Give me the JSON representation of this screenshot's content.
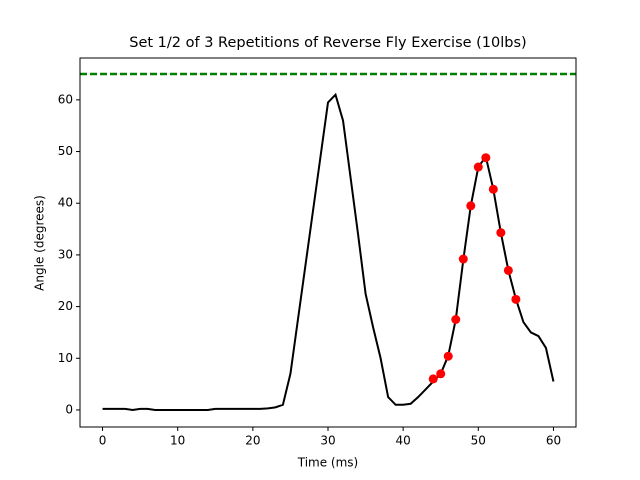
{
  "chart_data": {
    "type": "line",
    "title": "Set 1/2 of 3 Repetitions of Reverse Fly Exercise (10lbs)",
    "x_label": "Time (ms)",
    "y_label": "Angle (degrees)",
    "line": {
      "color": "#000000",
      "x": [
        0,
        1,
        2,
        3,
        4,
        5,
        6,
        7,
        8,
        9,
        10,
        11,
        12,
        13,
        14,
        15,
        16,
        17,
        18,
        19,
        20,
        21,
        22,
        23,
        24,
        25,
        26,
        27,
        28,
        29,
        30,
        31,
        32,
        33,
        34,
        35,
        36,
        37,
        38,
        39,
        40,
        41,
        42,
        43,
        44,
        45,
        46,
        47,
        48,
        49,
        50,
        51,
        52,
        53,
        54,
        55,
        56,
        57,
        58,
        59,
        60
      ],
      "values": [
        0.2,
        0.2,
        0.2,
        0.2,
        0,
        0.2,
        0.2,
        0,
        0,
        0,
        0,
        0,
        0,
        0,
        0,
        0.2,
        0.2,
        0.2,
        0.2,
        0.2,
        0.2,
        0.2,
        0.3,
        0.5,
        1,
        7,
        17.5,
        28,
        38.5,
        49,
        59.5,
        61,
        56,
        45,
        34,
        22.5,
        16,
        10,
        2.5,
        1,
        1,
        1.2,
        2.5,
        4,
        5.5,
        7,
        10.5,
        17.5,
        29,
        39.5,
        47,
        49,
        42.7,
        34.3,
        27,
        21.5,
        17,
        15,
        14.3,
        12,
        5.5
      ]
    },
    "points": {
      "color": "#ff0000",
      "x": [
        44,
        45,
        46,
        47,
        48,
        49,
        50,
        51,
        52,
        53,
        54,
        55
      ],
      "values": [
        6,
        7,
        10.4,
        17.5,
        29.2,
        39.5,
        47,
        48.8,
        42.7,
        34.3,
        27,
        21.4
      ]
    },
    "threshold": {
      "value": 65,
      "color": "#008000",
      "style": "dashed"
    },
    "xlim": [
      -3,
      63
    ],
    "ylim": [
      -3.3,
      68.1
    ],
    "xticks": [
      0,
      10,
      20,
      30,
      40,
      50,
      60
    ],
    "yticks": [
      0,
      10,
      20,
      30,
      40,
      50,
      60
    ]
  }
}
